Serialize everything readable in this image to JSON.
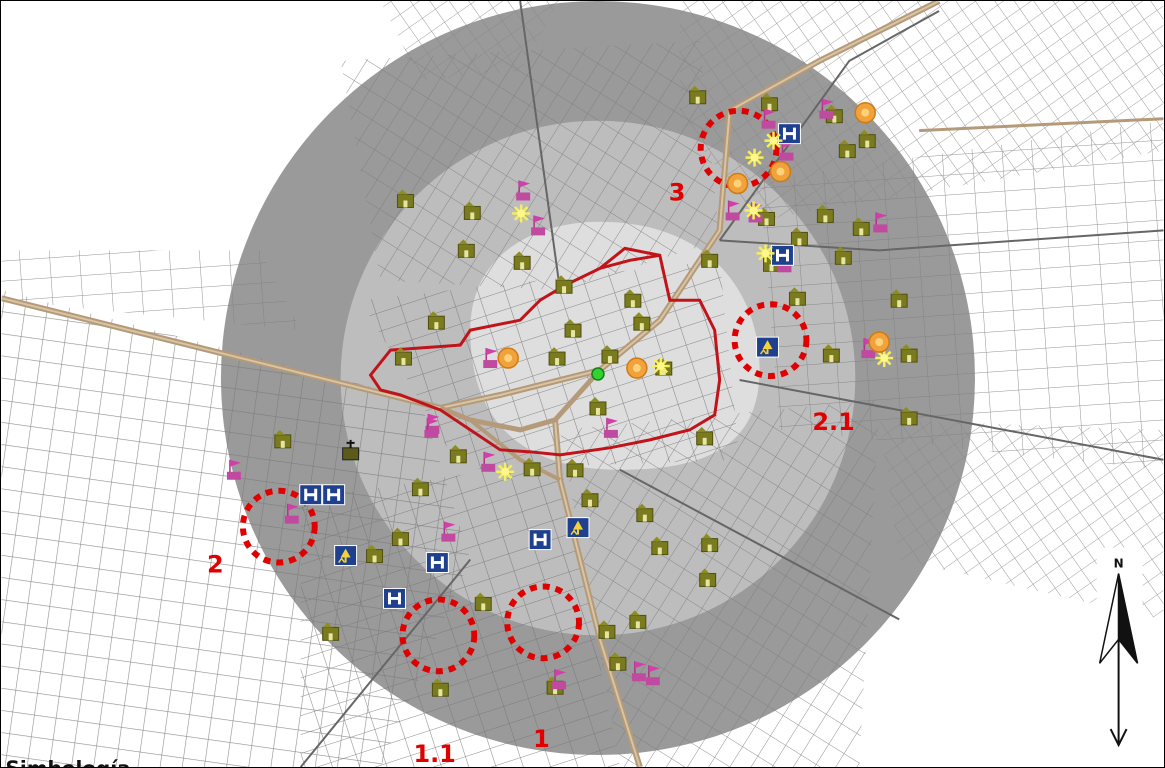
{
  "map": {
    "top_caption": "",
    "legend_title": "Simbología",
    "north_label": "N",
    "colors": {
      "outer_ring": "#9a9a9a",
      "middle_ring": "#bdbdbd",
      "inner_area": "#d0d0d0",
      "core_area": "#dedede",
      "streets": "#6e6e6e",
      "highway": "#b49a78",
      "boundary": "#c0141a",
      "highlight_circle": "#e00000",
      "label_color": "#e10000",
      "center_point": "#2fd42f"
    },
    "zone_labels": [
      {
        "id": "zone-1",
        "label": "1"
      },
      {
        "id": "zone-1-1",
        "label": "1.1"
      },
      {
        "id": "zone-2",
        "label": "2"
      },
      {
        "id": "zone-2-1",
        "label": "2.1"
      },
      {
        "id": "zone-3",
        "label": "3"
      }
    ],
    "poi_types": [
      {
        "id": "school",
        "icon": "school-building-icon",
        "symbol": "house"
      },
      {
        "id": "flag",
        "icon": "flag-marker-icon",
        "symbol": "flag"
      },
      {
        "id": "hospital",
        "icon": "hospital-icon",
        "symbol": "H"
      },
      {
        "id": "park",
        "icon": "park-icon",
        "symbol": "tree"
      },
      {
        "id": "sun",
        "icon": "star-burst-icon",
        "symbol": "burst"
      },
      {
        "id": "orange",
        "icon": "orange-circle-icon",
        "symbol": "circle"
      },
      {
        "id": "church",
        "icon": "church-icon",
        "symbol": "cross"
      }
    ]
  }
}
